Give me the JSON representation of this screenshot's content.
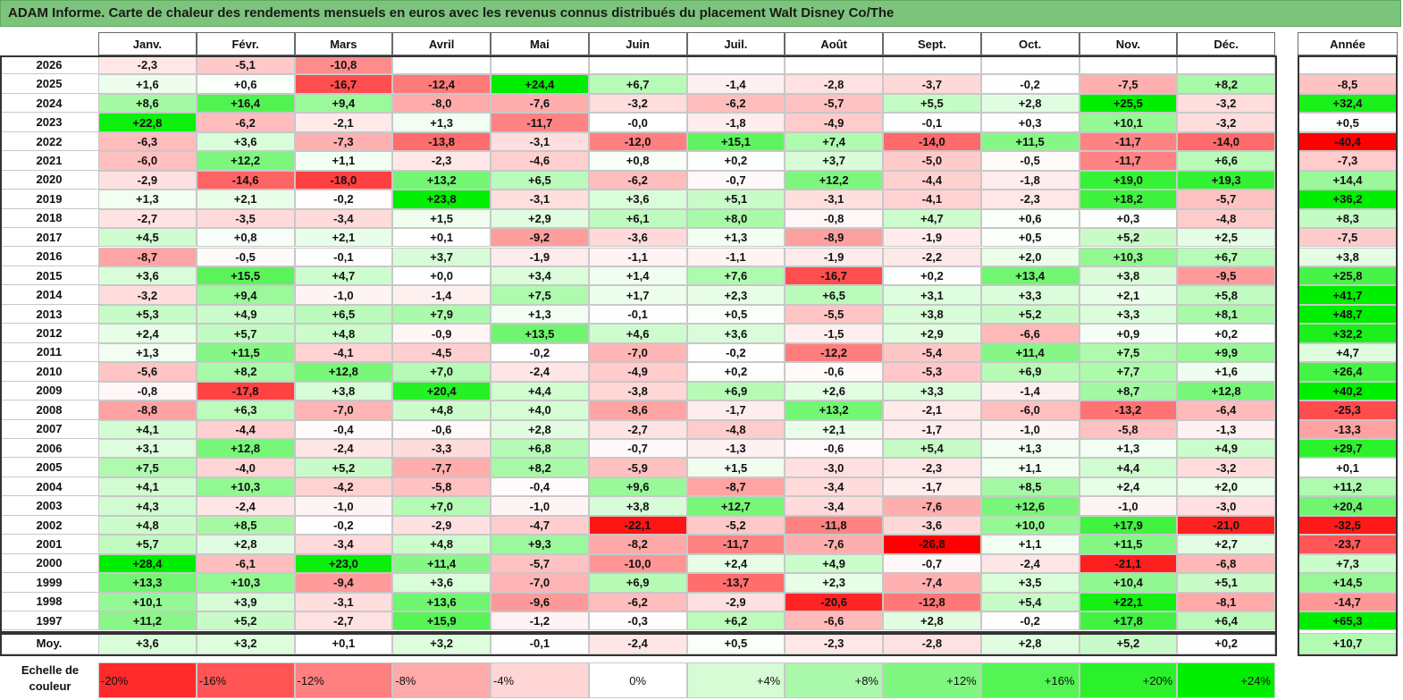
{
  "title": "ADAM Informe. Carte de chaleur des rendements mensuels en euros avec les revenus connus distribués du placement Walt Disney Co/The",
  "chart_data": {
    "type": "heatmap",
    "columns": [
      "Janv.",
      "Févr.",
      "Mars",
      "Avril",
      "Mai",
      "Juin",
      "Juil.",
      "Août",
      "Sept.",
      "Oct.",
      "Nov.",
      "Déc."
    ],
    "year_header": "Année",
    "rows": [
      {
        "year": "2026",
        "values": [
          "-2,3",
          "-5,1",
          "-10,8",
          "",
          "",
          "",
          "",
          "",
          "",
          "",
          "",
          ""
        ],
        "annual": ""
      },
      {
        "year": "2025",
        "values": [
          "+1,6",
          "+0,6",
          "-16,7",
          "-12,4",
          "+24,4",
          "+6,7",
          "-1,4",
          "-2,8",
          "-3,7",
          "-0,2",
          "-7,5",
          "+8,2"
        ],
        "annual": "-8,5"
      },
      {
        "year": "2024",
        "values": [
          "+8,6",
          "+16,4",
          "+9,4",
          "-8,0",
          "-7,6",
          "-3,2",
          "-6,2",
          "-5,7",
          "+5,5",
          "+2,8",
          "+25,5",
          "-3,2"
        ],
        "annual": "+32,4"
      },
      {
        "year": "2023",
        "values": [
          "+22,8",
          "-6,2",
          "-2,1",
          "+1,3",
          "-11,7",
          "-0,0",
          "-1,8",
          "-4,9",
          "-0,1",
          "+0,3",
          "+10,1",
          "-3,2"
        ],
        "annual": "+0,5"
      },
      {
        "year": "2022",
        "values": [
          "-6,3",
          "+3,6",
          "-7,3",
          "-13,8",
          "-3,1",
          "-12,0",
          "+15,1",
          "+7,4",
          "-14,0",
          "+11,5",
          "-11,7",
          "-14,0"
        ],
        "annual": "-40,4"
      },
      {
        "year": "2021",
        "values": [
          "-6,0",
          "+12,2",
          "+1,1",
          "-2,3",
          "-4,6",
          "+0,8",
          "+0,2",
          "+3,7",
          "-5,0",
          "-0,5",
          "-11,7",
          "+6,6"
        ],
        "annual": "-7,3"
      },
      {
        "year": "2020",
        "values": [
          "-2,9",
          "-14,6",
          "-18,0",
          "+13,2",
          "+6,5",
          "-6,2",
          "-0,7",
          "+12,2",
          "-4,4",
          "-1,8",
          "+19,0",
          "+19,3"
        ],
        "annual": "+14,4"
      },
      {
        "year": "2019",
        "values": [
          "+1,3",
          "+2,1",
          "-0,2",
          "+23,8",
          "-3,1",
          "+3,6",
          "+5,1",
          "-3,1",
          "-4,1",
          "-2,3",
          "+18,2",
          "-5,7"
        ],
        "annual": "+36,2"
      },
      {
        "year": "2018",
        "values": [
          "-2,7",
          "-3,5",
          "-3,4",
          "+1,5",
          "+2,9",
          "+6,1",
          "+8,0",
          "-0,8",
          "+4,7",
          "+0,6",
          "+0,3",
          "-4,8"
        ],
        "annual": "+8,3"
      },
      {
        "year": "2017",
        "values": [
          "+4,5",
          "+0,8",
          "+2,1",
          "+0,1",
          "-9,2",
          "-3,6",
          "+1,3",
          "-8,9",
          "-1,9",
          "+0,5",
          "+5,2",
          "+2,5"
        ],
        "annual": "-7,5"
      },
      {
        "year": "2016",
        "values": [
          "-8,7",
          "-0,5",
          "-0,1",
          "+3,7",
          "-1,9",
          "-1,1",
          "-1,1",
          "-1,9",
          "-2,2",
          "+2,0",
          "+10,3",
          "+6,7"
        ],
        "annual": "+3,8"
      },
      {
        "year": "2015",
        "values": [
          "+3,6",
          "+15,5",
          "+4,7",
          "+0,0",
          "+3,4",
          "+1,4",
          "+7,6",
          "-16,7",
          "+0,2",
          "+13,4",
          "+3,8",
          "-9,5"
        ],
        "annual": "+25,8"
      },
      {
        "year": "2014",
        "values": [
          "-3,2",
          "+9,4",
          "-1,0",
          "-1,4",
          "+7,5",
          "+1,7",
          "+2,3",
          "+6,5",
          "+3,1",
          "+3,3",
          "+2,1",
          "+5,8"
        ],
        "annual": "+41,7"
      },
      {
        "year": "2013",
        "values": [
          "+5,3",
          "+4,9",
          "+6,5",
          "+7,9",
          "+1,3",
          "-0,1",
          "+0,5",
          "-5,5",
          "+3,8",
          "+5,2",
          "+3,3",
          "+8,1"
        ],
        "annual": "+48,7"
      },
      {
        "year": "2012",
        "values": [
          "+2,4",
          "+5,7",
          "+4,8",
          "-0,9",
          "+13,5",
          "+4,6",
          "+3,6",
          "-1,5",
          "+2,9",
          "-6,6",
          "+0,9",
          "+0,2"
        ],
        "annual": "+32,2"
      },
      {
        "year": "2011",
        "values": [
          "+1,3",
          "+11,5",
          "-4,1",
          "-4,5",
          "-0,2",
          "-7,0",
          "-0,2",
          "-12,2",
          "-5,4",
          "+11,4",
          "+7,5",
          "+9,9"
        ],
        "annual": "+4,7"
      },
      {
        "year": "2010",
        "values": [
          "-5,6",
          "+8,2",
          "+12,8",
          "+7,0",
          "-2,4",
          "-4,9",
          "+0,2",
          "-0,6",
          "-5,3",
          "+6,9",
          "+7,7",
          "+1,6"
        ],
        "annual": "+26,4"
      },
      {
        "year": "2009",
        "values": [
          "-0,8",
          "-17,8",
          "+3,8",
          "+20,4",
          "+4,4",
          "-3,8",
          "+6,9",
          "+2,6",
          "+3,3",
          "-1,4",
          "+8,7",
          "+12,8"
        ],
        "annual": "+40,2"
      },
      {
        "year": "2008",
        "values": [
          "-8,8",
          "+6,3",
          "-7,0",
          "+4,8",
          "+4,0",
          "-8,6",
          "-1,7",
          "+13,2",
          "-2,1",
          "-6,0",
          "-13,2",
          "-6,4"
        ],
        "annual": "-25,3"
      },
      {
        "year": "2007",
        "values": [
          "+4,1",
          "-4,4",
          "-0,4",
          "-0,6",
          "+2,8",
          "-2,7",
          "-4,8",
          "+2,1",
          "-1,7",
          "-1,0",
          "-5,8",
          "-1,3"
        ],
        "annual": "-13,3"
      },
      {
        "year": "2006",
        "values": [
          "+3,1",
          "+12,8",
          "-2,4",
          "-3,3",
          "+6,8",
          "-0,7",
          "-1,3",
          "-0,6",
          "+5,4",
          "+1,3",
          "+1,3",
          "+4,9"
        ],
        "annual": "+29,7"
      },
      {
        "year": "2005",
        "values": [
          "+7,5",
          "-4,0",
          "+5,2",
          "-7,7",
          "+8,2",
          "-5,9",
          "+1,5",
          "-3,0",
          "-2,3",
          "+1,1",
          "+4,4",
          "-3,2"
        ],
        "annual": "+0,1"
      },
      {
        "year": "2004",
        "values": [
          "+4,1",
          "+10,3",
          "-4,2",
          "-5,8",
          "-0,4",
          "+9,6",
          "-8,7",
          "-3,4",
          "-1,7",
          "+8,5",
          "+2,4",
          "+2,0"
        ],
        "annual": "+11,2"
      },
      {
        "year": "2003",
        "values": [
          "+4,3",
          "-2,4",
          "-1,0",
          "+7,0",
          "-1,0",
          "+3,8",
          "+12,7",
          "-3,4",
          "-7,6",
          "+12,6",
          "-1,0",
          "-3,0"
        ],
        "annual": "+20,4"
      },
      {
        "year": "2002",
        "values": [
          "+4,8",
          "+8,5",
          "-0,2",
          "-2,9",
          "-4,7",
          "-22,1",
          "-5,2",
          "-11,8",
          "-3,6",
          "+10,0",
          "+17,9",
          "-21,0"
        ],
        "annual": "-32,5"
      },
      {
        "year": "2001",
        "values": [
          "+5,7",
          "+2,8",
          "-3,4",
          "+4,8",
          "+9,3",
          "-8,2",
          "-11,7",
          "-7,6",
          "-26,8",
          "+1,1",
          "+11,5",
          "+2,7"
        ],
        "annual": "-23,7"
      },
      {
        "year": "2000",
        "values": [
          "+28,4",
          "-6,1",
          "+23,0",
          "+11,4",
          "-5,7",
          "-10,0",
          "+2,4",
          "+4,9",
          "-0,7",
          "-2,4",
          "-21,1",
          "-6,8"
        ],
        "annual": "+7,3"
      },
      {
        "year": "1999",
        "values": [
          "+13,3",
          "+10,3",
          "-9,4",
          "+3,6",
          "-7,0",
          "+6,9",
          "-13,7",
          "+2,3",
          "-7,4",
          "+3,5",
          "+10,4",
          "+5,1"
        ],
        "annual": "+14,5"
      },
      {
        "year": "1998",
        "values": [
          "+10,1",
          "+3,9",
          "-3,1",
          "+13,6",
          "-9,6",
          "-6,2",
          "-2,9",
          "-20,6",
          "-12,8",
          "+5,4",
          "+22,1",
          "-8,1"
        ],
        "annual": "-14,7"
      },
      {
        "year": "1997",
        "values": [
          "+11,2",
          "+5,2",
          "-2,7",
          "+15,9",
          "-1,2",
          "-0,3",
          "+6,2",
          "-6,6",
          "+2,8",
          "-0,2",
          "+17,8",
          "+6,4"
        ],
        "annual": "+65,3"
      }
    ],
    "average": {
      "label": "Moy.",
      "values": [
        "+3,6",
        "+3,2",
        "+0,1",
        "+3,2",
        "-0,1",
        "-2,4",
        "+0,5",
        "-2,3",
        "-2,8",
        "+2,8",
        "+5,2",
        "+0,2"
      ],
      "annual": "+10,7"
    },
    "color_scale": {
      "label": "Echelle de couleur",
      "stops": [
        "-20%",
        "-16%",
        "-12%",
        "-8%",
        "-4%",
        "0%",
        "+4%",
        "+8%",
        "+12%",
        "+16%",
        "+20%",
        "+24%"
      ],
      "negative_color": "#ff0000",
      "neutral_color": "#ffffff",
      "positive_color": "#00ee00"
    }
  }
}
